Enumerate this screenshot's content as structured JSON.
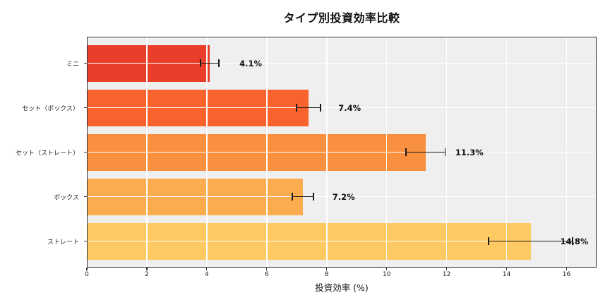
{
  "chart_data": {
    "type": "bar",
    "orientation": "horizontal",
    "title": "タイプ別投資効率比較",
    "xlabel": "投資効率 (%)",
    "ylabel": "",
    "categories": [
      "ミニ",
      "セット（ボックス）",
      "セット（ストレート）",
      "ボックス",
      "ストレート"
    ],
    "values": [
      4.1,
      7.4,
      11.3,
      7.2,
      14.8
    ],
    "errors": [
      0.3,
      0.4,
      0.65,
      0.35,
      1.4
    ],
    "value_labels": [
      "4.1%",
      "7.4%",
      "11.3%",
      "7.2%",
      "14.8%"
    ],
    "bar_colors": [
      "#E93E29",
      "#F8622D",
      "#F9903F",
      "#FBAC4E",
      "#FCC963"
    ],
    "xlim": [
      0,
      17
    ],
    "xticks": [
      0,
      2,
      4,
      6,
      8,
      10,
      12,
      14,
      16
    ],
    "grid": true,
    "legend": "none",
    "plot_bg_color": "#EFEFEF",
    "grid_color": "#FFFFFF",
    "border_color": "#333333",
    "error_bar_color": "#1A1A1A"
  }
}
